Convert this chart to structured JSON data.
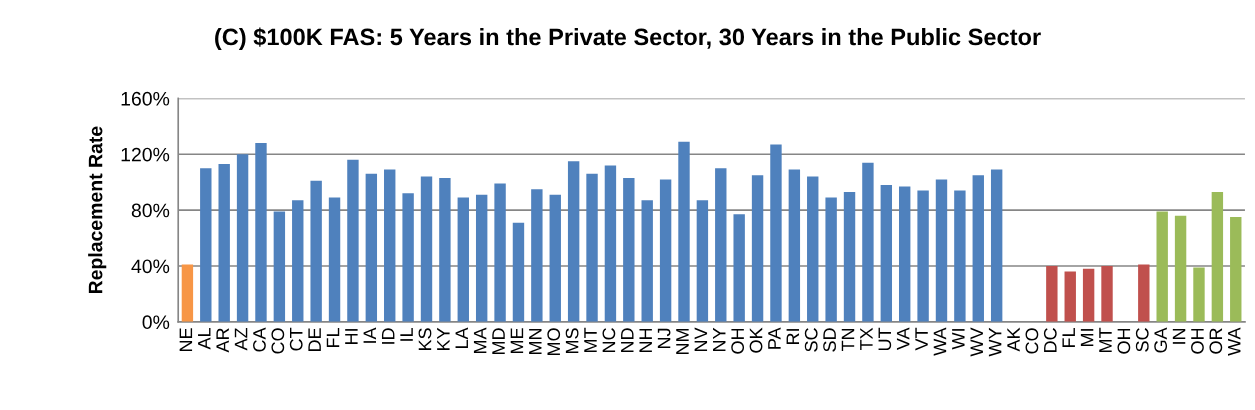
{
  "chart_data": {
    "type": "bar",
    "title": "(C) $100K FAS: 5 Years in the Private Sector, 30 Years in the Public Sector",
    "ylabel": "Replacement Rate",
    "categories": [
      "NE",
      "AL",
      "AR",
      "AZ",
      "CA",
      "CO",
      "CT",
      "DE",
      "FL",
      "HI",
      "IA",
      "ID",
      "IL",
      "KS",
      "KY",
      "LA",
      "MA",
      "MD",
      "ME",
      "MN",
      "MO",
      "MS",
      "MT",
      "NC",
      "ND",
      "NH",
      "NJ",
      "NM",
      "NV",
      "NY",
      "OH",
      "OK",
      "PA",
      "RI",
      "SC",
      "SD",
      "TN",
      "TX",
      "UT",
      "VA",
      "VT",
      "WA",
      "WI",
      "WV",
      "WY",
      "AK",
      "CO",
      "DC",
      "FL",
      "MI",
      "MT",
      "OH",
      "SC",
      "GA",
      "IN",
      "OH",
      "OR",
      "WA"
    ],
    "values": [
      41,
      110,
      113,
      120,
      128,
      79,
      87,
      101,
      89,
      116,
      106,
      109,
      92,
      104,
      103,
      89,
      91,
      99,
      71,
      95,
      91,
      115,
      106,
      112,
      103,
      87,
      102,
      129,
      87,
      110,
      77,
      105,
      127,
      109,
      104,
      89,
      93,
      114,
      98,
      97,
      94,
      102,
      94,
      105,
      109,
      null,
      null,
      40,
      36,
      38,
      40,
      null,
      41,
      79,
      76,
      39,
      93,
      75
    ],
    "colors": [
      "#f79646",
      "#4f81bd",
      "#4f81bd",
      "#4f81bd",
      "#4f81bd",
      "#4f81bd",
      "#4f81bd",
      "#4f81bd",
      "#4f81bd",
      "#4f81bd",
      "#4f81bd",
      "#4f81bd",
      "#4f81bd",
      "#4f81bd",
      "#4f81bd",
      "#4f81bd",
      "#4f81bd",
      "#4f81bd",
      "#4f81bd",
      "#4f81bd",
      "#4f81bd",
      "#4f81bd",
      "#4f81bd",
      "#4f81bd",
      "#4f81bd",
      "#4f81bd",
      "#4f81bd",
      "#4f81bd",
      "#4f81bd",
      "#4f81bd",
      "#4f81bd",
      "#4f81bd",
      "#4f81bd",
      "#4f81bd",
      "#4f81bd",
      "#4f81bd",
      "#4f81bd",
      "#4f81bd",
      "#4f81bd",
      "#4f81bd",
      "#4f81bd",
      "#4f81bd",
      "#4f81bd",
      "#4f81bd",
      "#4f81bd",
      "#c0504d",
      "#c0504d",
      "#c0504d",
      "#c0504d",
      "#c0504d",
      "#c0504d",
      "#c0504d",
      "#c0504d",
      "#9bbb59",
      "#9bbb59",
      "#9bbb59",
      "#9bbb59",
      "#9bbb59"
    ],
    "ylim": [
      0,
      160
    ],
    "yticks": [
      {
        "value": 0,
        "label": "0%"
      },
      {
        "value": 40,
        "label": "40%"
      },
      {
        "value": 80,
        "label": "80%"
      },
      {
        "value": 120,
        "label": "120%"
      },
      {
        "value": 160,
        "label": "160%"
      }
    ],
    "grid": "y",
    "legend": false
  }
}
